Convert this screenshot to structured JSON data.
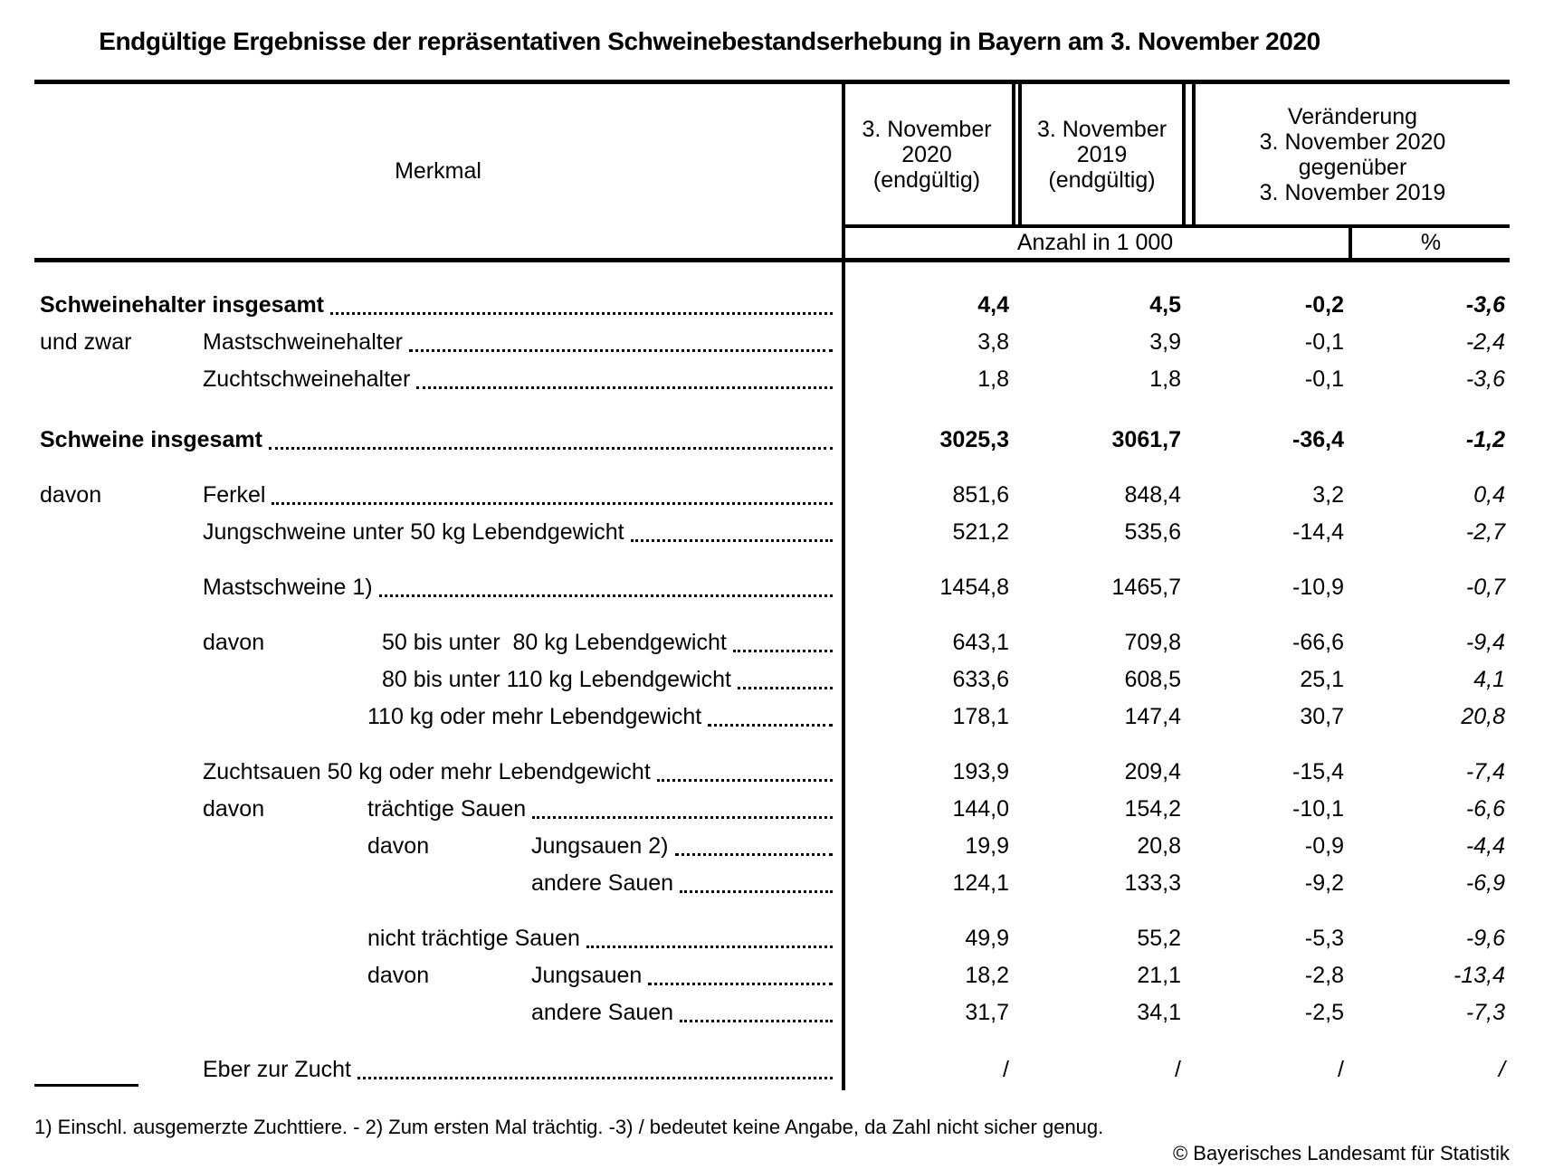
{
  "title": "Endgültige Ergebnisse der repräsentativen Schweinebestandserhebung in Bayern am 3. November 2020",
  "table": {
    "header": {
      "merkmal": "Merkmal",
      "col_2020": "3. November\n2020\n(endgültig)",
      "col_2019": "3. November\n2019\n(endgültig)",
      "col_change": "Veränderung\n3. November 2020\ngegenüber\n3. November 2019",
      "unit_count": "Anzahl in 1 000",
      "unit_percent": "%"
    },
    "rows": [
      {
        "label": "Schweinehalter insgesamt",
        "level": 0,
        "bold": true,
        "values": [
          "4,4",
          "4,5",
          "-0,2",
          "-3,6"
        ]
      },
      {
        "side": "und zwar",
        "side_level": 0,
        "label": "Mastschweinehalter",
        "level": 1,
        "values": [
          "3,8",
          "3,9",
          "-0,1",
          "-2,4"
        ]
      },
      {
        "label": "Zuchtschweinehalter",
        "level": 1,
        "values": [
          "1,8",
          "1,8",
          "-0,1",
          "-3,6"
        ]
      },
      {
        "gap_before": 26,
        "label": "Schweine insgesamt",
        "level": 0,
        "bold": true,
        "values": [
          "3025,3",
          "3061,7",
          "-36,4",
          "-1,2"
        ]
      },
      {
        "gap_before": 20,
        "side": "davon",
        "side_level": 0,
        "label": "Ferkel",
        "level": 1,
        "values": [
          "851,6",
          "848,4",
          "3,2",
          "0,4"
        ]
      },
      {
        "label": "Jungschweine unter 50 kg Lebendgewicht",
        "level": 1,
        "values": [
          "521,2",
          "535,6",
          "-14,4",
          "-2,7"
        ]
      },
      {
        "gap_before": 20,
        "label": "Mastschweine 1)",
        "level": 1,
        "values": [
          "1454,8",
          "1465,7",
          "-10,9",
          "-0,7"
        ]
      },
      {
        "gap_before": 20,
        "side": "davon",
        "side_level": 1,
        "label": "50 bis unter  80 kg Lebendgewicht",
        "level": 2,
        "extra_indent": 16,
        "values": [
          "643,1",
          "709,8",
          "-66,6",
          "-9,4"
        ]
      },
      {
        "label": "80 bis unter 110 kg Lebendgewicht",
        "level": 2,
        "extra_indent": 16,
        "values": [
          "633,6",
          "608,5",
          "25,1",
          "4,1"
        ]
      },
      {
        "label": "110 kg oder mehr Lebendgewicht",
        "level": 2,
        "values": [
          "178,1",
          "147,4",
          "30,7",
          "20,8"
        ]
      },
      {
        "gap_before": 20,
        "label": "Zuchtsauen 50 kg oder mehr Lebendgewicht",
        "level": 1,
        "values": [
          "193,9",
          "209,4",
          "-15,4",
          "-7,4"
        ]
      },
      {
        "side": "davon",
        "side_level": 1,
        "label": "trächtige Sauen",
        "level": 2,
        "values": [
          "144,0",
          "154,2",
          "-10,1",
          "-6,6"
        ]
      },
      {
        "side": "davon",
        "side_level": 2,
        "label": "Jungsauen 2)",
        "level": 3,
        "values": [
          "19,9",
          "20,8",
          "-0,9",
          "-4,4"
        ]
      },
      {
        "label": "andere Sauen",
        "level": 3,
        "values": [
          "124,1",
          "133,3",
          "-9,2",
          "-6,9"
        ]
      },
      {
        "gap_before": 20,
        "label": "nicht trächtige Sauen",
        "level": 2,
        "values": [
          "49,9",
          "55,2",
          "-5,3",
          "-9,6"
        ]
      },
      {
        "side": "davon",
        "side_level": 2,
        "label": "Jungsauen",
        "level": 3,
        "values": [
          "18,2",
          "21,1",
          "-2,8",
          "-13,4"
        ]
      },
      {
        "label": "andere Sauen",
        "level": 3,
        "values": [
          "31,7",
          "34,1",
          "-2,5",
          "-7,3"
        ]
      },
      {
        "gap_before": 22,
        "label": "Eber zur Zucht",
        "level": 1,
        "values": [
          "/",
          "/",
          "/",
          "/"
        ]
      }
    ]
  },
  "footnote": "1) Einschl. ausgemerzte Zuchttiere. - 2) Zum ersten Mal trächtig. -3) / bedeutet keine Angabe, da Zahl nicht sicher genug.",
  "copyright": "© Bayerisches Landesamt für Statistik",
  "colors": {
    "ink": "#000000",
    "paper": "#ffffff"
  }
}
